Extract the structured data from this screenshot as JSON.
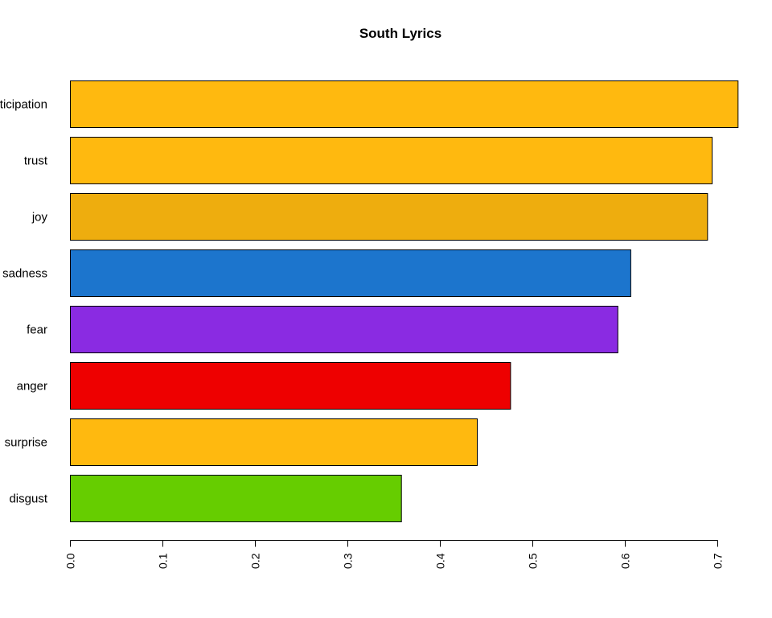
{
  "chart_data": {
    "type": "bar",
    "orientation": "horizontal",
    "title": "South Lyrics",
    "xlabel": "",
    "ylabel": "",
    "categories": [
      "anticipation",
      "trust",
      "joy",
      "sadness",
      "fear",
      "anger",
      "surprise",
      "disgust"
    ],
    "values": [
      0.722,
      0.694,
      0.689,
      0.606,
      0.592,
      0.476,
      0.44,
      0.358
    ],
    "colors": [
      "#FFB90F",
      "#FFB90F",
      "#EEAD0E",
      "#1C75CD",
      "#8A2BE2",
      "#EE0000",
      "#FFB90F",
      "#66CD00"
    ],
    "xlim": [
      0,
      0.73
    ],
    "ticks": [
      0.0,
      0.1,
      0.2,
      0.3,
      0.4,
      0.5,
      0.6,
      0.7
    ],
    "tick_labels": [
      "0.0",
      "0.1",
      "0.2",
      "0.3",
      "0.4",
      "0.5",
      "0.6",
      "0.7"
    ],
    "grid": false,
    "legend": "none"
  }
}
